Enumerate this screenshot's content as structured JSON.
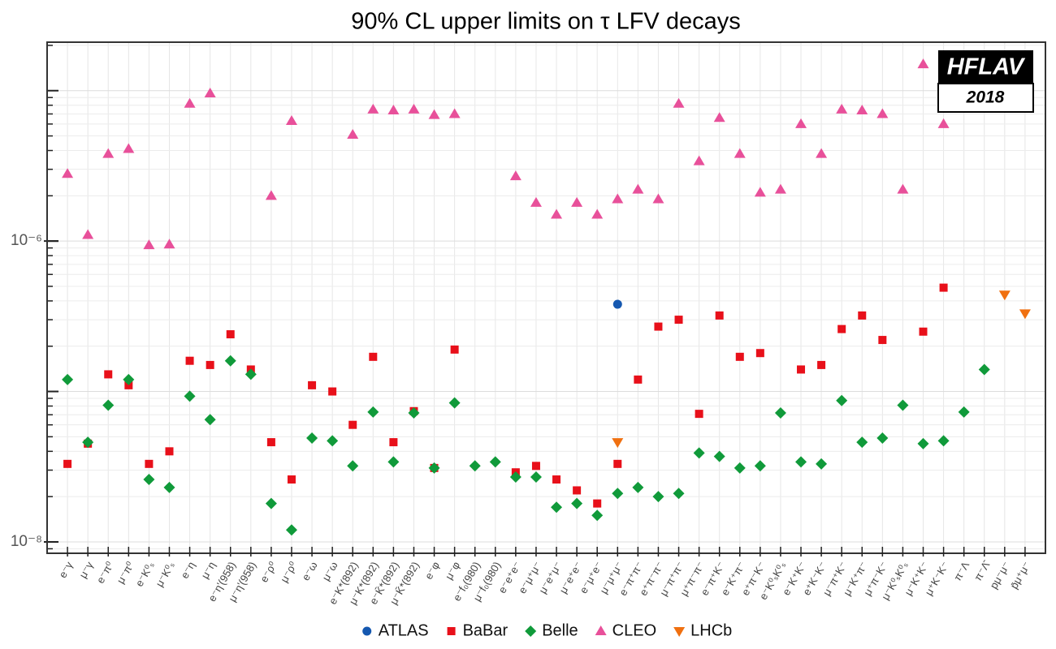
{
  "chart_data": {
    "type": "scatter",
    "title": "90% CL upper limits on τ LFV decays",
    "categories": [
      "e⁻γ",
      "μ⁻γ",
      "e⁻π⁰",
      "μ⁻π⁰",
      "e⁻K⁰ₛ",
      "μ⁻K⁰ₛ",
      "e⁻η",
      "μ⁻η",
      "e⁻η'(958)",
      "μ⁻η'(958)",
      "e⁻ρ⁰",
      "μ⁻ρ⁰",
      "e⁻ω",
      "μ⁻ω",
      "e⁻K*(892)",
      "μ⁻K*(892)",
      "e⁻K̄*(892)",
      "μ⁻K̄*(892)",
      "e⁻φ",
      "μ⁻φ",
      "e⁻f₀(980)",
      "μ⁻f₀(980)",
      "e⁻e⁺e⁻",
      "e⁻μ⁺μ⁻",
      "μ⁻e⁺μ⁻",
      "μ⁻e⁺e⁻",
      "e⁻μ⁺e⁻",
      "μ⁻μ⁺μ⁻",
      "e⁻π⁺π⁻",
      "e⁺π⁻π⁻",
      "μ⁻π⁺π⁻",
      "μ⁺π⁻π⁻",
      "e⁻π⁺K⁻",
      "e⁻K⁺π⁻",
      "e⁺π⁻K⁻",
      "e⁻K⁰ₛK⁰ₛ",
      "e⁻K⁺K⁻",
      "e⁺K⁻K⁻",
      "μ⁻π⁺K⁻",
      "μ⁻K⁺π⁻",
      "μ⁺π⁻K⁻",
      "μ⁻K⁰ₛK⁰ₛ",
      "μ⁻K⁺K⁻",
      "μ⁺K⁻K⁻",
      "π⁻Λ",
      "π⁻Λ̄",
      "pμ⁻μ⁻",
      "p̄μ⁺μ⁻"
    ],
    "series": [
      {
        "name": "ATLAS",
        "color": "#1558b0",
        "marker": "circle",
        "values": [
          null,
          null,
          null,
          null,
          null,
          null,
          null,
          null,
          null,
          null,
          null,
          null,
          null,
          null,
          null,
          null,
          null,
          null,
          null,
          null,
          null,
          null,
          null,
          null,
          null,
          null,
          null,
          3.8e-07,
          null,
          null,
          null,
          null,
          null,
          null,
          null,
          null,
          null,
          null,
          null,
          null,
          null,
          null,
          null,
          null,
          null,
          null,
          null,
          null
        ]
      },
      {
        "name": "BaBar",
        "color": "#e8101a",
        "marker": "square",
        "values": [
          3.3e-08,
          4.5e-08,
          1.3e-07,
          1.1e-07,
          3.3e-08,
          4e-08,
          1.6e-07,
          1.5e-07,
          2.4e-07,
          1.4e-07,
          4.6e-08,
          2.6e-08,
          1.1e-07,
          1e-07,
          6e-08,
          1.7e-07,
          4.6e-08,
          7.4e-08,
          3.1e-08,
          1.9e-07,
          null,
          null,
          2.9e-08,
          3.2e-08,
          2.6e-08,
          2.2e-08,
          1.8e-08,
          3.3e-08,
          1.2e-07,
          2.7e-07,
          3e-07,
          7.1e-08,
          3.2e-07,
          1.7e-07,
          1.8e-07,
          null,
          1.4e-07,
          1.5e-07,
          2.6e-07,
          3.2e-07,
          2.2e-07,
          null,
          2.5e-07,
          4.9e-07,
          null,
          null,
          null,
          null
        ]
      },
      {
        "name": "Belle",
        "color": "#109a3a",
        "marker": "diamond",
        "values": [
          1.2e-07,
          4.6e-08,
          8.1e-08,
          1.2e-07,
          2.6e-08,
          2.3e-08,
          9.3e-08,
          6.5e-08,
          1.6e-07,
          1.3e-07,
          1.8e-08,
          1.2e-08,
          4.9e-08,
          4.7e-08,
          3.2e-08,
          7.3e-08,
          3.4e-08,
          7.2e-08,
          3.1e-08,
          8.4e-08,
          3.2e-08,
          3.4e-08,
          2.7e-08,
          2.7e-08,
          1.7e-08,
          1.8e-08,
          1.5e-08,
          2.1e-08,
          2.3e-08,
          2e-08,
          2.1e-08,
          3.9e-08,
          3.7e-08,
          3.1e-08,
          3.2e-08,
          7.2e-08,
          3.4e-08,
          3.3e-08,
          8.7e-08,
          4.6e-08,
          4.9e-08,
          8.1e-08,
          4.5e-08,
          4.7e-08,
          7.3e-08,
          1.4e-07,
          null,
          null
        ]
      },
      {
        "name": "CLEO",
        "color": "#e8509a",
        "marker": "triangle-up",
        "values": [
          2.8e-06,
          1.1e-06,
          3.8e-06,
          4.1e-06,
          9.4e-07,
          9.5e-07,
          8.2e-06,
          9.6e-06,
          null,
          null,
          2e-06,
          6.3e-06,
          null,
          null,
          5.1e-06,
          7.5e-06,
          7.4e-06,
          7.5e-06,
          6.9e-06,
          7e-06,
          null,
          null,
          2.7e-06,
          1.8e-06,
          1.5e-06,
          1.8e-06,
          1.5e-06,
          1.9e-06,
          2.2e-06,
          1.9e-06,
          8.2e-06,
          3.4e-06,
          6.6e-06,
          3.8e-06,
          2.1e-06,
          2.2e-06,
          6e-06,
          3.8e-06,
          7.5e-06,
          7.4e-06,
          7e-06,
          2.2e-06,
          1.5e-05,
          6e-06,
          null,
          null,
          null,
          null
        ]
      },
      {
        "name": "LHCb",
        "color": "#f07010",
        "marker": "triangle-down",
        "values": [
          null,
          null,
          null,
          null,
          null,
          null,
          null,
          null,
          null,
          null,
          null,
          null,
          null,
          null,
          null,
          null,
          null,
          null,
          null,
          null,
          null,
          null,
          null,
          null,
          null,
          null,
          null,
          4.6e-08,
          null,
          null,
          null,
          null,
          null,
          null,
          null,
          null,
          null,
          null,
          null,
          null,
          null,
          null,
          null,
          null,
          null,
          null,
          4.4e-07,
          3.3e-07
        ]
      }
    ],
    "log_y": true,
    "ylim": [
      8.4e-09,
      2.1e-05
    ],
    "yticks": [
      {
        "value": 1e-08,
        "label": "10⁻⁸"
      },
      {
        "value": 1e-06,
        "label": "10⁻⁶"
      }
    ],
    "grid": true,
    "legend": "bottom",
    "logo": {
      "text": "HFLAV",
      "year": "2018"
    }
  }
}
